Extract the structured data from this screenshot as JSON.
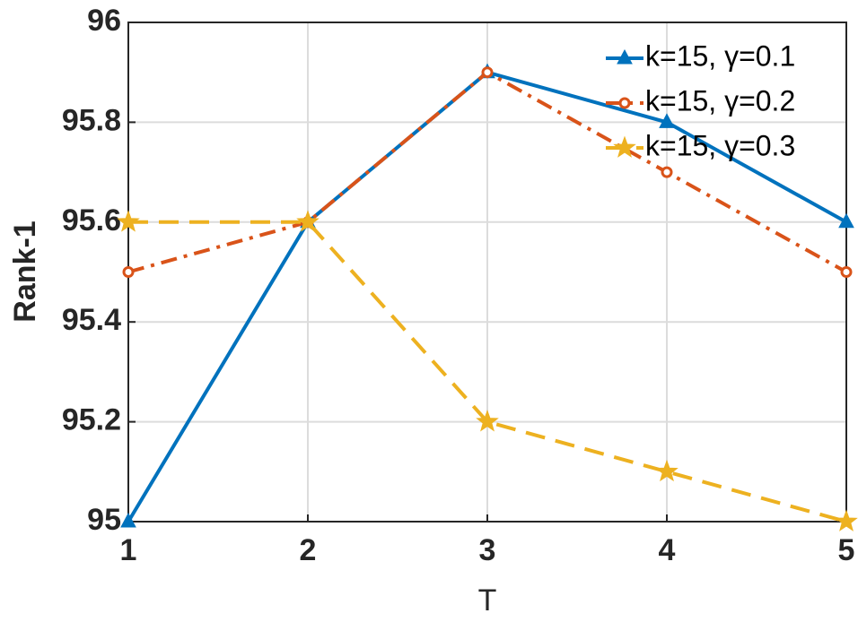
{
  "chart_data": {
    "type": "line",
    "x_label": "T",
    "y_label": "Rank-1",
    "x": [
      1,
      2,
      3,
      4,
      5
    ],
    "series": [
      {
        "name": "k=15, γ=0.1",
        "color": "#0072bd",
        "dash": "solid",
        "marker": "triangle",
        "values": [
          95,
          95.6,
          95.9,
          95.8,
          95.6
        ]
      },
      {
        "name": "k=15, γ=0.2",
        "color": "#d95319",
        "dash": "dashdot",
        "marker": "circle",
        "values": [
          95.5,
          95.6,
          95.9,
          95.7,
          95.5
        ]
      },
      {
        "name": "k=15, γ=0.3",
        "color": "#edb120",
        "dash": "dashed",
        "marker": "star",
        "values": [
          95.6,
          95.6,
          95.2,
          95.1,
          95
        ]
      }
    ],
    "xlim": [
      1,
      5
    ],
    "xticks": [
      1,
      2,
      3,
      4,
      5
    ],
    "ylim": [
      95,
      96
    ],
    "yticks": [
      95,
      95.2,
      95.4,
      95.6,
      95.8,
      96
    ],
    "grid": true,
    "legend": "top-right"
  }
}
